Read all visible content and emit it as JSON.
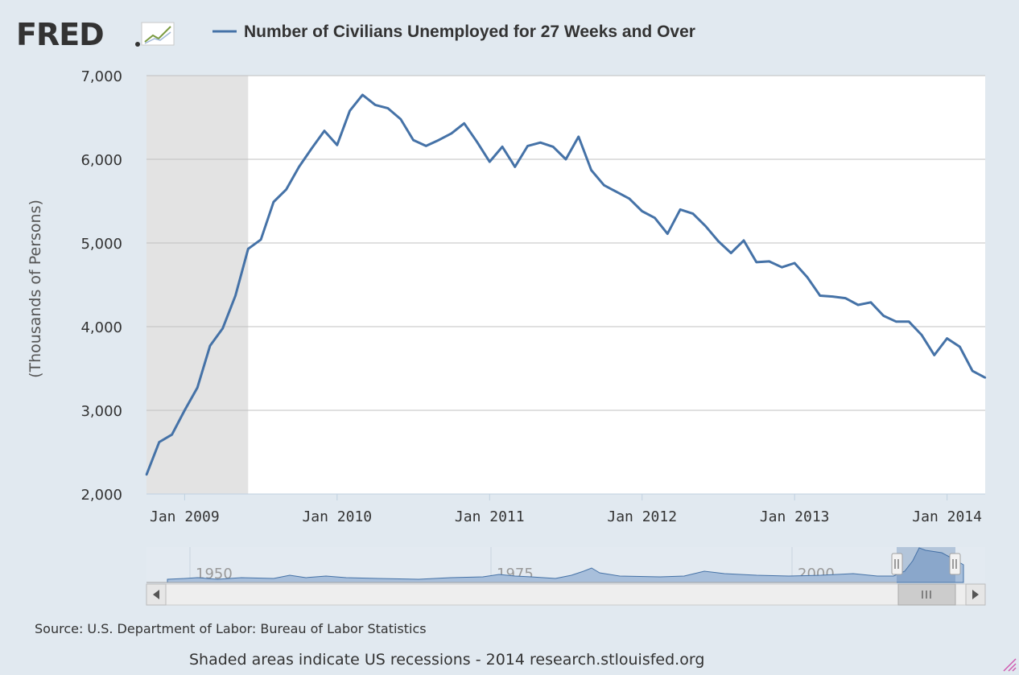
{
  "header": {
    "logo_text": "FRED",
    "series_title": "Number of Civilians Unemployed for 27 Weeks and Over"
  },
  "colors": {
    "background": "#e1e9f0",
    "line": "#4572a7",
    "recession": "#e3e3e3",
    "grid": "#c0c0c0",
    "navigator_fill": "#7fa2cb",
    "logo": "#333333"
  },
  "icons": {
    "logo_graph": "fred-graph-icon",
    "scroll_left": "arrow-left-icon",
    "scroll_right": "arrow-right-icon",
    "handle_left": "navigator-handle-icon",
    "handle_right": "navigator-handle-icon",
    "scroll_thumb": "scroll-grip-icon",
    "resize": "resize-grip-icon"
  },
  "navigator": {
    "labels": [
      "1950",
      "1975",
      "2000"
    ]
  },
  "footer": {
    "source": "Source: U.S. Department of Labor: Bureau of Labor Statistics",
    "note": "Shaded areas indicate US recessions - 2014 research.stlouisfed.org"
  },
  "chart_data": {
    "type": "line",
    "ylabel": "(Thousands of Persons)",
    "xlabel": "",
    "ylim": [
      2000,
      7000
    ],
    "yticks": [
      2000,
      3000,
      4000,
      5000,
      6000,
      7000
    ],
    "ytick_labels": [
      "2,000",
      "3,000",
      "4,000",
      "5,000",
      "6,000",
      "7,000"
    ],
    "xticks": [
      "2009-01",
      "2010-01",
      "2011-01",
      "2012-01",
      "2013-01",
      "2014-01"
    ],
    "xtick_labels": [
      "Jan 2009",
      "Jan 2010",
      "Jan 2011",
      "Jan 2012",
      "Jan 2013",
      "Jan 2014"
    ],
    "x_start": "2008-10",
    "x_end": "2014-04",
    "grid": true,
    "legend_position": "top",
    "recession": {
      "start": "2008-10",
      "end": "2009-06"
    },
    "series": [
      {
        "name": "Number of Civilians Unemployed for 27 Weeks and Over",
        "x": [
          "2008-10",
          "2008-11",
          "2008-12",
          "2009-01",
          "2009-02",
          "2009-03",
          "2009-04",
          "2009-05",
          "2009-06",
          "2009-07",
          "2009-08",
          "2009-09",
          "2009-10",
          "2009-11",
          "2009-12",
          "2010-01",
          "2010-02",
          "2010-03",
          "2010-04",
          "2010-05",
          "2010-06",
          "2010-07",
          "2010-08",
          "2010-09",
          "2010-10",
          "2010-11",
          "2010-12",
          "2011-01",
          "2011-02",
          "2011-03",
          "2011-04",
          "2011-05",
          "2011-06",
          "2011-07",
          "2011-08",
          "2011-09",
          "2011-10",
          "2011-11",
          "2011-12",
          "2012-01",
          "2012-02",
          "2012-03",
          "2012-04",
          "2012-05",
          "2012-06",
          "2012-07",
          "2012-08",
          "2012-09",
          "2012-10",
          "2012-11",
          "2012-12",
          "2013-01",
          "2013-02",
          "2013-03",
          "2013-04",
          "2013-05",
          "2013-06",
          "2013-07",
          "2013-08",
          "2013-09",
          "2013-10",
          "2013-11",
          "2013-12",
          "2014-01",
          "2014-02",
          "2014-03",
          "2014-04"
        ],
        "values": [
          2230,
          2620,
          2710,
          3000,
          3270,
          3770,
          3980,
          4370,
          4930,
          5040,
          5490,
          5640,
          5910,
          6130,
          6340,
          6170,
          6580,
          6770,
          6650,
          6610,
          6480,
          6230,
          6160,
          6230,
          6310,
          6430,
          6210,
          5970,
          6150,
          5910,
          6160,
          6200,
          6150,
          6000,
          6270,
          5870,
          5690,
          5610,
          5530,
          5380,
          5300,
          5110,
          5400,
          5350,
          5200,
          5020,
          4880,
          5030,
          4770,
          4780,
          4710,
          4760,
          4590,
          4370,
          4360,
          4340,
          4260,
          4290,
          4130,
          4060,
          4060,
          3900,
          3660,
          3860,
          3760,
          3470,
          3390
        ]
      }
    ]
  }
}
